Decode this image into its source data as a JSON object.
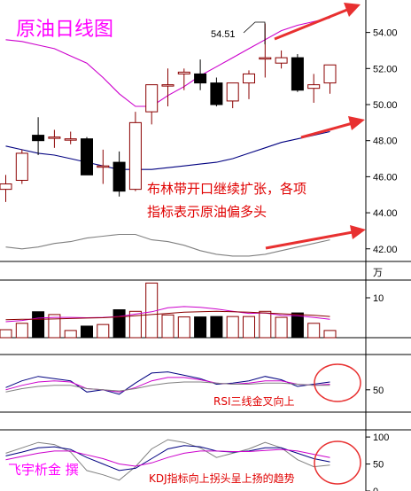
{
  "title": "原油日线图",
  "watermark": "飞宇析金 撰",
  "annotations": {
    "boll": [
      "布林带开口继续扩张，各项",
      "指标表示原油偏多头"
    ],
    "rsi": "RSI三线金叉向上",
    "kdj": "KDJ指标向上拐头呈上扬的趋势",
    "peak": "54.51"
  },
  "colors": {
    "up_candle": "#8b0000",
    "down_candle": "#000000",
    "ma_upper": "#cc00cc",
    "ma_middle": "#000080",
    "ma_lower": "#808080",
    "arrow": "#e83030",
    "circle": "#e83030"
  },
  "chart_data": [
    {
      "type": "candlestick",
      "ylim": [
        41.3,
        55.8
      ],
      "ticks": [
        42.0,
        44.0,
        46.0,
        48.0,
        50.0,
        52.0,
        54.0
      ],
      "tick_labels": [
        "42.00",
        "44.00",
        "46.00",
        "48.00",
        "50.00",
        "52.00",
        "54.00"
      ],
      "candles": [
        {
          "o": 45.3,
          "h": 46.1,
          "l": 44.6,
          "c": 45.6
        },
        {
          "o": 45.8,
          "h": 47.5,
          "l": 45.6,
          "c": 47.3
        },
        {
          "o": 48.3,
          "h": 49.3,
          "l": 47.2,
          "c": 48.0
        },
        {
          "o": 48.2,
          "h": 48.6,
          "l": 47.6,
          "c": 48.2
        },
        {
          "o": 48.1,
          "h": 48.5,
          "l": 47.8,
          "c": 48.1
        },
        {
          "o": 48.1,
          "h": 48.2,
          "l": 46.1,
          "c": 46.1
        },
        {
          "o": 46.6,
          "h": 47.5,
          "l": 45.6,
          "c": 46.6
        },
        {
          "o": 46.8,
          "h": 47.4,
          "l": 44.9,
          "c": 45.2
        },
        {
          "o": 45.3,
          "h": 49.6,
          "l": 45.2,
          "c": 49.0
        },
        {
          "o": 49.6,
          "h": 51.1,
          "l": 48.9,
          "c": 51.1
        },
        {
          "o": 51.1,
          "h": 52.0,
          "l": 49.9,
          "c": 51.1
        },
        {
          "o": 51.7,
          "h": 52.0,
          "l": 50.8,
          "c": 51.8
        },
        {
          "o": 51.7,
          "h": 52.5,
          "l": 50.8,
          "c": 51.2
        },
        {
          "o": 51.2,
          "h": 51.5,
          "l": 49.9,
          "c": 50.0
        },
        {
          "o": 50.2,
          "h": 51.2,
          "l": 49.8,
          "c": 51.2
        },
        {
          "o": 51.2,
          "h": 51.9,
          "l": 50.3,
          "c": 51.7
        },
        {
          "o": 52.6,
          "h": 54.5,
          "l": 51.5,
          "c": 52.6
        },
        {
          "o": 52.3,
          "h": 53.0,
          "l": 52.0,
          "c": 52.6
        },
        {
          "o": 52.6,
          "h": 52.8,
          "l": 50.7,
          "c": 50.8
        },
        {
          "o": 50.9,
          "h": 51.7,
          "l": 50.1,
          "c": 51.1
        },
        {
          "o": 51.2,
          "h": 52.2,
          "l": 50.6,
          "c": 52.2
        }
      ],
      "boll_upper": [
        53.6,
        53.5,
        53.3,
        53.1,
        52.7,
        52.3,
        51.5,
        50.6,
        49.9,
        49.9,
        50.5,
        51.0,
        51.6,
        52.1,
        52.6,
        53.1,
        53.6,
        54.1,
        54.4,
        54.6,
        54.8
      ],
      "boll_middle": [
        47.7,
        47.5,
        47.3,
        47.2,
        47.0,
        46.8,
        46.6,
        46.4,
        46.4,
        46.4,
        46.5,
        46.6,
        46.7,
        46.8,
        47.0,
        47.3,
        47.6,
        47.9,
        48.1,
        48.3,
        48.5
      ],
      "boll_lower": [
        42.1,
        42.0,
        42.1,
        42.3,
        42.4,
        42.6,
        42.7,
        42.8,
        42.8,
        42.5,
        42.4,
        42.2,
        41.9,
        41.7,
        41.6,
        41.6,
        41.7,
        41.9,
        42.1,
        42.3,
        42.5
      ]
    },
    {
      "type": "bar",
      "ylabel": "万",
      "ylim": [
        0,
        14
      ],
      "ticks": [
        10
      ],
      "tick_labels": [
        "10"
      ],
      "values": [
        2.0,
        3.6,
        6.5,
        5.8,
        1.8,
        2.9,
        3.3,
        7.0,
        6.6,
        13.7,
        5.7,
        5.2,
        5.2,
        5.3,
        5.3,
        5.3,
        6.6,
        5.1,
        6.2,
        3.6,
        1.8
      ],
      "ma1": [
        4.0,
        4.3,
        4.9,
        5.1,
        5.1,
        5.0,
        5.1,
        5.3,
        5.9,
        6.5,
        7.5,
        7.8,
        7.6,
        7.2,
        6.6,
        6.1,
        6.2,
        5.6,
        5.5,
        5.1,
        4.6
      ],
      "ma2": [
        4.5,
        4.6,
        4.6,
        4.7,
        4.8,
        4.9,
        5.0,
        5.2,
        5.5,
        5.8,
        6.1,
        6.4,
        6.5,
        6.6,
        6.5,
        6.4,
        6.2,
        6.0,
        5.8,
        5.6,
        5.3
      ]
    },
    {
      "type": "line",
      "name": "RSI",
      "ylim": [
        30,
        80
      ],
      "ticks": [
        50
      ],
      "tick_labels": [
        "50"
      ],
      "series": [
        {
          "values": [
            52,
            58,
            62,
            60,
            58,
            48,
            50,
            46,
            56,
            65,
            66,
            63,
            60,
            55,
            56,
            58,
            62,
            59,
            53,
            55,
            57
          ]
        },
        {
          "values": [
            50,
            54,
            57,
            58,
            57,
            51,
            50,
            48,
            52,
            58,
            61,
            61,
            59,
            56,
            55,
            56,
            58,
            58,
            55,
            54,
            55
          ]
        },
        {
          "values": [
            48,
            51,
            53,
            54,
            54,
            51,
            50,
            49,
            51,
            54,
            56,
            57,
            57,
            56,
            55,
            55,
            56,
            56,
            55,
            54,
            54
          ]
        }
      ]
    },
    {
      "type": "line",
      "name": "KDJ",
      "ylim": [
        0,
        110
      ],
      "ticks": [
        0,
        50,
        100
      ],
      "tick_labels": [
        "0",
        "50",
        "100"
      ],
      "series": [
        {
          "values": [
            70,
            80,
            90,
            86,
            72,
            38,
            30,
            20,
            45,
            78,
            95,
            90,
            80,
            62,
            70,
            78,
            90,
            80,
            58,
            45,
            48
          ]
        },
        {
          "values": [
            65,
            72,
            80,
            82,
            77,
            62,
            50,
            38,
            42,
            60,
            78,
            84,
            82,
            74,
            72,
            74,
            80,
            80,
            70,
            60,
            54
          ]
        },
        {
          "values": [
            58,
            64,
            70,
            74,
            74,
            67,
            60,
            50,
            46,
            52,
            62,
            70,
            74,
            74,
            73,
            73,
            75,
            77,
            74,
            68,
            62
          ]
        }
      ]
    }
  ]
}
